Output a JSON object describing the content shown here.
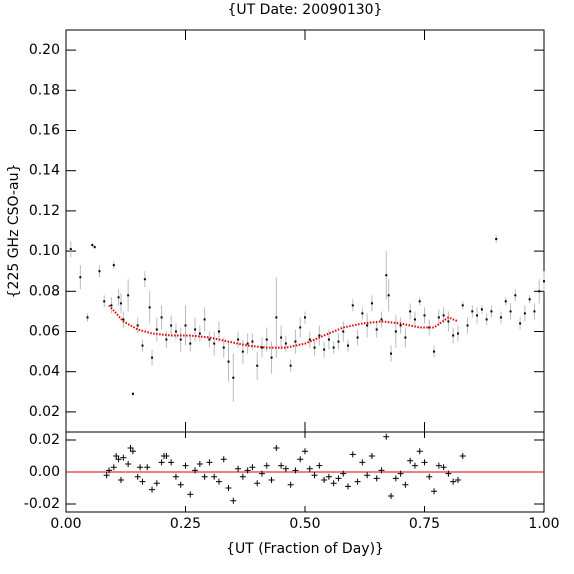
{
  "chart_data": [
    {
      "type": "scatter",
      "title": "{UT Date: 20090130}",
      "y_label": "{225 GHz CSO-au}",
      "xlim": [
        0,
        1
      ],
      "xticks": [
        0,
        0.25,
        0.5,
        0.75,
        1
      ],
      "ylim": [
        0.01,
        0.21
      ],
      "yticks": [
        0.02,
        0.04,
        0.06,
        0.08,
        {
          "value": 0.1,
          "label": "0.10"
        },
        0.12,
        0.14,
        0.16,
        0.18,
        {
          "value": 0.2,
          "label": "0.20"
        }
      ],
      "color": "#000000",
      "error_color": "#bbbbbb",
      "x": [
        0.01,
        0.03,
        0.045,
        0.055,
        0.06,
        0.07,
        0.08,
        0.095,
        0.1,
        0.11,
        0.115,
        0.12,
        0.13,
        0.14,
        0.15,
        0.16,
        0.165,
        0.175,
        0.18,
        0.19,
        0.2,
        0.21,
        0.22,
        0.23,
        0.24,
        0.25,
        0.26,
        0.27,
        0.28,
        0.29,
        0.3,
        0.31,
        0.32,
        0.33,
        0.34,
        0.35,
        0.36,
        0.37,
        0.38,
        0.39,
        0.4,
        0.41,
        0.42,
        0.43,
        0.44,
        0.45,
        0.46,
        0.47,
        0.48,
        0.49,
        0.5,
        0.51,
        0.52,
        0.53,
        0.54,
        0.55,
        0.56,
        0.57,
        0.58,
        0.59,
        0.6,
        0.61,
        0.62,
        0.63,
        0.64,
        0.65,
        0.66,
        0.67,
        0.675,
        0.68,
        0.69,
        0.7,
        0.71,
        0.72,
        0.73,
        0.74,
        0.75,
        0.76,
        0.77,
        0.78,
        0.79,
        0.8,
        0.81,
        0.82,
        0.83,
        0.84,
        0.85,
        0.86,
        0.87,
        0.88,
        0.89,
        0.9,
        0.91,
        0.92,
        0.93,
        0.94,
        0.95,
        0.96,
        0.97,
        0.98,
        0.99,
        1.0
      ],
      "values": [
        0.101,
        0.087,
        0.067,
        0.103,
        0.102,
        0.09,
        0.075,
        0.073,
        0.093,
        0.077,
        0.074,
        0.066,
        0.078,
        0.029,
        0.063,
        0.053,
        0.086,
        0.072,
        0.047,
        0.061,
        0.067,
        0.056,
        0.063,
        0.06,
        0.056,
        0.063,
        0.054,
        0.061,
        0.059,
        0.066,
        0.056,
        0.054,
        0.06,
        0.052,
        0.045,
        0.037,
        0.056,
        0.05,
        0.054,
        0.055,
        0.043,
        0.052,
        0.056,
        0.047,
        0.067,
        0.057,
        0.054,
        0.043,
        0.055,
        0.062,
        0.067,
        0.056,
        0.052,
        0.058,
        0.051,
        0.056,
        0.052,
        0.055,
        0.06,
        0.053,
        0.073,
        0.057,
        0.069,
        0.063,
        0.074,
        0.061,
        0.066,
        0.088,
        0.078,
        0.049,
        0.06,
        0.063,
        0.057,
        0.07,
        0.066,
        0.075,
        0.068,
        0.062,
        0.05,
        0.067,
        0.068,
        0.065,
        0.058,
        0.059,
        0.073,
        0.063,
        0.07,
        0.068,
        0.071,
        0.066,
        0.07,
        0.106,
        0.067,
        0.075,
        0.07,
        0.078,
        0.064,
        0.069,
        0.076,
        0.07,
        0.08,
        0.085
      ],
      "errors": [
        0.004,
        0.006,
        0.002,
        0.001,
        0.001,
        0.003,
        0.003,
        0.004,
        0.002,
        0.004,
        0.005,
        0.004,
        0.008,
        0.001,
        0.004,
        0.003,
        0.004,
        0.008,
        0.004,
        0.006,
        0.006,
        0.004,
        0.005,
        0.004,
        0.006,
        0.01,
        0.004,
        0.006,
        0.004,
        0.006,
        0.004,
        0.006,
        0.005,
        0.005,
        0.01,
        0.012,
        0.004,
        0.006,
        0.005,
        0.004,
        0.007,
        0.005,
        0.006,
        0.008,
        0.02,
        0.006,
        0.004,
        0.003,
        0.006,
        0.005,
        0.003,
        0.004,
        0.004,
        0.005,
        0.004,
        0.005,
        0.003,
        0.004,
        0.005,
        0.003,
        0.003,
        0.004,
        0.003,
        0.006,
        0.004,
        0.004,
        0.004,
        0.012,
        0.008,
        0.004,
        0.008,
        0.004,
        0.005,
        0.004,
        0.004,
        0.002,
        0.004,
        0.004,
        0.003,
        0.004,
        0.004,
        0.005,
        0.004,
        0.004,
        0.002,
        0.004,
        0.003,
        0.004,
        0.002,
        0.003,
        0.003,
        0.002,
        0.003,
        0.002,
        0.004,
        0.003,
        0.003,
        0.004,
        0.002,
        0.004,
        0.006,
        0.005
      ],
      "fit": {
        "color": "#e00000",
        "x": [
          0.09,
          0.12,
          0.15,
          0.18,
          0.22,
          0.26,
          0.3,
          0.34,
          0.38,
          0.42,
          0.46,
          0.5,
          0.54,
          0.58,
          0.62,
          0.66,
          0.7,
          0.74,
          0.77,
          0.8,
          0.82
        ],
        "values": [
          0.073,
          0.065,
          0.061,
          0.059,
          0.058,
          0.058,
          0.057,
          0.055,
          0.053,
          0.052,
          0.052,
          0.054,
          0.058,
          0.062,
          0.064,
          0.065,
          0.064,
          0.062,
          0.062,
          0.067,
          0.065
        ]
      }
    },
    {
      "type": "residual",
      "x_label": "{UT (Fraction of Day)}",
      "xlim": [
        0,
        1
      ],
      "xticks": [
        {
          "value": 0,
          "label": "0.00"
        },
        0.25,
        {
          "value": 0.5,
          "label": "0.50"
        },
        0.75,
        {
          "value": 1,
          "label": "1.00"
        }
      ],
      "ylim": [
        -0.025,
        0.025
      ],
      "yticks": [
        -0.02,
        {
          "value": 0,
          "label": "0.00"
        },
        0.02
      ],
      "color": "#000000",
      "reference_line": {
        "value": 0,
        "color": "#e00000"
      },
      "x": [
        0.085,
        0.09,
        0.1,
        0.105,
        0.11,
        0.115,
        0.12,
        0.13,
        0.135,
        0.14,
        0.15,
        0.155,
        0.16,
        0.17,
        0.18,
        0.19,
        0.2,
        0.205,
        0.21,
        0.22,
        0.23,
        0.24,
        0.25,
        0.26,
        0.27,
        0.28,
        0.29,
        0.3,
        0.31,
        0.32,
        0.33,
        0.34,
        0.35,
        0.36,
        0.37,
        0.38,
        0.39,
        0.4,
        0.41,
        0.42,
        0.43,
        0.44,
        0.45,
        0.46,
        0.47,
        0.48,
        0.49,
        0.5,
        0.51,
        0.52,
        0.53,
        0.54,
        0.55,
        0.56,
        0.57,
        0.58,
        0.59,
        0.6,
        0.61,
        0.62,
        0.63,
        0.64,
        0.65,
        0.66,
        0.67,
        0.68,
        0.69,
        0.7,
        0.71,
        0.72,
        0.73,
        0.74,
        0.75,
        0.76,
        0.77,
        0.78,
        0.79,
        0.8,
        0.81,
        0.82,
        0.83
      ],
      "values": [
        -0.002,
        0.001,
        0.003,
        0.01,
        0.008,
        -0.005,
        0.009,
        0.005,
        0.015,
        0.013,
        -0.003,
        0.003,
        -0.006,
        0.003,
        -0.011,
        -0.007,
        0.006,
        0.01,
        0.01,
        0.006,
        -0.003,
        -0.008,
        0.004,
        -0.014,
        0.001,
        0.005,
        -0.003,
        0.006,
        -0.003,
        -0.006,
        0.008,
        -0.01,
        -0.018,
        0.002,
        -0.003,
        0.001,
        0.003,
        -0.007,
        -0.001,
        0.004,
        -0.005,
        0.015,
        0.004,
        0.002,
        -0.008,
        0.001,
        0.008,
        0.013,
        0.002,
        -0.002,
        0.004,
        -0.005,
        -0.003,
        -0.007,
        -0.004,
        -0.001,
        -0.009,
        0.011,
        -0.006,
        0.006,
        -0.002,
        0.01,
        -0.004,
        0.001,
        0.022,
        -0.015,
        -0.004,
        -0.001,
        -0.008,
        0.007,
        0.004,
        0.013,
        0.006,
        -0.003,
        -0.012,
        0.004,
        0.003,
        -0.001,
        -0.006,
        -0.005,
        0.01
      ]
    }
  ]
}
